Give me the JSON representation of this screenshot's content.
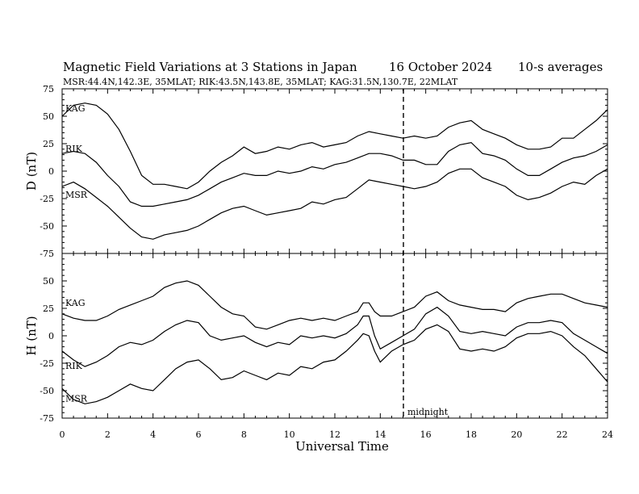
{
  "header": {
    "title": "Magnetic Field Variations at 3 Stations in Japan",
    "date": "16 October 2024",
    "averaging": "10-s averages",
    "stations": "MSR:44.4N,142.3E, 35MLAT;  RIK:43.5N,143.8E, 35MLAT;  KAG:31.5N,130.7E, 22MLAT"
  },
  "chart_data": [
    {
      "type": "line",
      "ylabel": "D (nT)",
      "ylim": [
        -75,
        75
      ],
      "yticks": [
        75,
        50,
        25,
        0,
        -25,
        -50,
        -75
      ],
      "xlim": [
        0,
        24
      ],
      "series": [
        {
          "name": "KAG",
          "x": [
            0,
            0.5,
            1,
            1.5,
            2,
            2.5,
            3,
            3.5,
            4,
            4.5,
            5,
            5.5,
            6,
            6.5,
            7,
            7.5,
            8,
            8.5,
            9,
            9.5,
            10,
            10.5,
            11,
            11.5,
            12,
            12.5,
            13,
            13.5,
            14,
            14.5,
            15,
            15.5,
            16,
            16.5,
            17,
            17.5,
            18,
            18.5,
            19,
            19.5,
            20,
            20.5,
            21,
            21.5,
            22,
            22.5,
            23,
            23.5,
            24
          ],
          "values": [
            50,
            60,
            62,
            60,
            52,
            38,
            18,
            -4,
            -12,
            -12,
            -14,
            -16,
            -10,
            0,
            8,
            14,
            22,
            16,
            18,
            22,
            20,
            24,
            26,
            22,
            24,
            26,
            32,
            36,
            34,
            32,
            30,
            32,
            30,
            32,
            40,
            44,
            46,
            38,
            34,
            30,
            24,
            20,
            20,
            22,
            30,
            30,
            38,
            46,
            56
          ]
        },
        {
          "name": "RIK",
          "x": [
            0,
            0.5,
            1,
            1.5,
            2,
            2.5,
            3,
            3.5,
            4,
            4.5,
            5,
            5.5,
            6,
            6.5,
            7,
            7.5,
            8,
            8.5,
            9,
            9.5,
            10,
            10.5,
            11,
            11.5,
            12,
            12.5,
            13,
            13.5,
            14,
            14.5,
            15,
            15.5,
            16,
            16.5,
            17,
            17.5,
            18,
            18.5,
            19,
            19.5,
            20,
            20.5,
            21,
            21.5,
            22,
            22.5,
            23,
            23.5,
            24
          ],
          "values": [
            16,
            18,
            16,
            8,
            -4,
            -14,
            -28,
            -32,
            -32,
            -30,
            -28,
            -26,
            -22,
            -16,
            -10,
            -6,
            -2,
            -4,
            -4,
            0,
            -2,
            0,
            4,
            2,
            6,
            8,
            12,
            16,
            16,
            14,
            10,
            10,
            6,
            6,
            18,
            24,
            26,
            16,
            14,
            10,
            2,
            -4,
            -4,
            2,
            8,
            12,
            14,
            18,
            24
          ]
        },
        {
          "name": "MSR",
          "x": [
            0,
            0.5,
            1,
            1.5,
            2,
            2.5,
            3,
            3.5,
            4,
            4.5,
            5,
            5.5,
            6,
            6.5,
            7,
            7.5,
            8,
            8.5,
            9,
            9.5,
            10,
            10.5,
            11,
            11.5,
            12,
            12.5,
            13,
            13.5,
            14,
            14.5,
            15,
            15.5,
            16,
            16.5,
            17,
            17.5,
            18,
            18.5,
            19,
            19.5,
            20,
            20.5,
            21,
            21.5,
            22,
            22.5,
            23,
            23.5,
            24
          ],
          "values": [
            -14,
            -10,
            -16,
            -24,
            -32,
            -42,
            -52,
            -60,
            -62,
            -58,
            -56,
            -54,
            -50,
            -44,
            -38,
            -34,
            -32,
            -36,
            -40,
            -38,
            -36,
            -34,
            -28,
            -30,
            -26,
            -24,
            -16,
            -8,
            -10,
            -12,
            -14,
            -16,
            -14,
            -10,
            -2,
            2,
            2,
            -6,
            -10,
            -14,
            -22,
            -26,
            -24,
            -20,
            -14,
            -10,
            -12,
            -4,
            2
          ]
        }
      ]
    },
    {
      "type": "line",
      "ylabel": "H (nT)",
      "xlabel": "Universal Time",
      "ylim": [
        -75,
        75
      ],
      "yticks": [
        50,
        25,
        0,
        -25,
        -50,
        -75
      ],
      "xlim": [
        0,
        24
      ],
      "xticks": [
        0,
        2,
        4,
        6,
        8,
        10,
        12,
        14,
        16,
        18,
        20,
        22,
        24
      ],
      "annotation": {
        "x": 15,
        "label": "midnight"
      },
      "series": [
        {
          "name": "KAG",
          "x": [
            0,
            0.5,
            1,
            1.5,
            2,
            2.5,
            3,
            3.5,
            4,
            4.5,
            5,
            5.5,
            6,
            6.5,
            7,
            7.5,
            8,
            8.5,
            9,
            9.5,
            10,
            10.5,
            11,
            11.5,
            12,
            12.5,
            13,
            13.25,
            13.5,
            13.75,
            14,
            14.5,
            15,
            15.5,
            16,
            16.5,
            17,
            17.5,
            18,
            18.5,
            19,
            19.5,
            20,
            20.5,
            21,
            21.5,
            22,
            22.5,
            23,
            23.5,
            24
          ],
          "values": [
            20,
            16,
            14,
            14,
            18,
            24,
            28,
            32,
            36,
            44,
            48,
            50,
            46,
            36,
            26,
            20,
            18,
            8,
            6,
            10,
            14,
            16,
            14,
            16,
            14,
            18,
            22,
            30,
            30,
            22,
            18,
            18,
            22,
            26,
            36,
            40,
            32,
            28,
            26,
            24,
            24,
            22,
            30,
            34,
            36,
            38,
            38,
            34,
            30,
            28,
            26
          ]
        },
        {
          "name": "RIK",
          "x": [
            0,
            0.5,
            1,
            1.5,
            2,
            2.5,
            3,
            3.5,
            4,
            4.5,
            5,
            5.5,
            6,
            6.5,
            7,
            7.5,
            8,
            8.5,
            9,
            9.5,
            10,
            10.5,
            11,
            11.5,
            12,
            12.5,
            13,
            13.25,
            13.5,
            13.75,
            14,
            14.5,
            15,
            15.5,
            16,
            16.5,
            17,
            17.5,
            18,
            18.5,
            19,
            19.5,
            20,
            20.5,
            21,
            21.5,
            22,
            22.5,
            23,
            23.5,
            24
          ],
          "values": [
            -14,
            -22,
            -28,
            -24,
            -18,
            -10,
            -6,
            -8,
            -4,
            4,
            10,
            14,
            12,
            0,
            -4,
            -2,
            0,
            -6,
            -10,
            -6,
            -8,
            0,
            -2,
            0,
            -2,
            2,
            10,
            18,
            18,
            0,
            -12,
            -6,
            0,
            6,
            20,
            26,
            18,
            4,
            2,
            4,
            2,
            0,
            8,
            12,
            12,
            14,
            12,
            2,
            -4,
            -10,
            -16
          ]
        },
        {
          "name": "MSR",
          "x": [
            0,
            0.5,
            1,
            1.5,
            2,
            2.5,
            3,
            3.5,
            4,
            4.5,
            5,
            5.5,
            6,
            6.5,
            7,
            7.5,
            8,
            8.5,
            9,
            9.5,
            10,
            10.5,
            11,
            11.5,
            12,
            12.5,
            13,
            13.25,
            13.5,
            13.75,
            14,
            14.5,
            15,
            15.5,
            16,
            16.5,
            17,
            17.5,
            18,
            18.5,
            19,
            19.5,
            20,
            20.5,
            21,
            21.5,
            22,
            22.5,
            23,
            23.5,
            24
          ],
          "values": [
            -48,
            -58,
            -62,
            -60,
            -56,
            -50,
            -44,
            -48,
            -50,
            -40,
            -30,
            -24,
            -22,
            -30,
            -40,
            -38,
            -32,
            -36,
            -40,
            -34,
            -36,
            -28,
            -30,
            -24,
            -22,
            -14,
            -4,
            2,
            0,
            -14,
            -24,
            -14,
            -8,
            -4,
            6,
            10,
            4,
            -12,
            -14,
            -12,
            -14,
            -10,
            -2,
            2,
            2,
            4,
            0,
            -10,
            -18,
            -30,
            -42
          ]
        }
      ]
    }
  ]
}
